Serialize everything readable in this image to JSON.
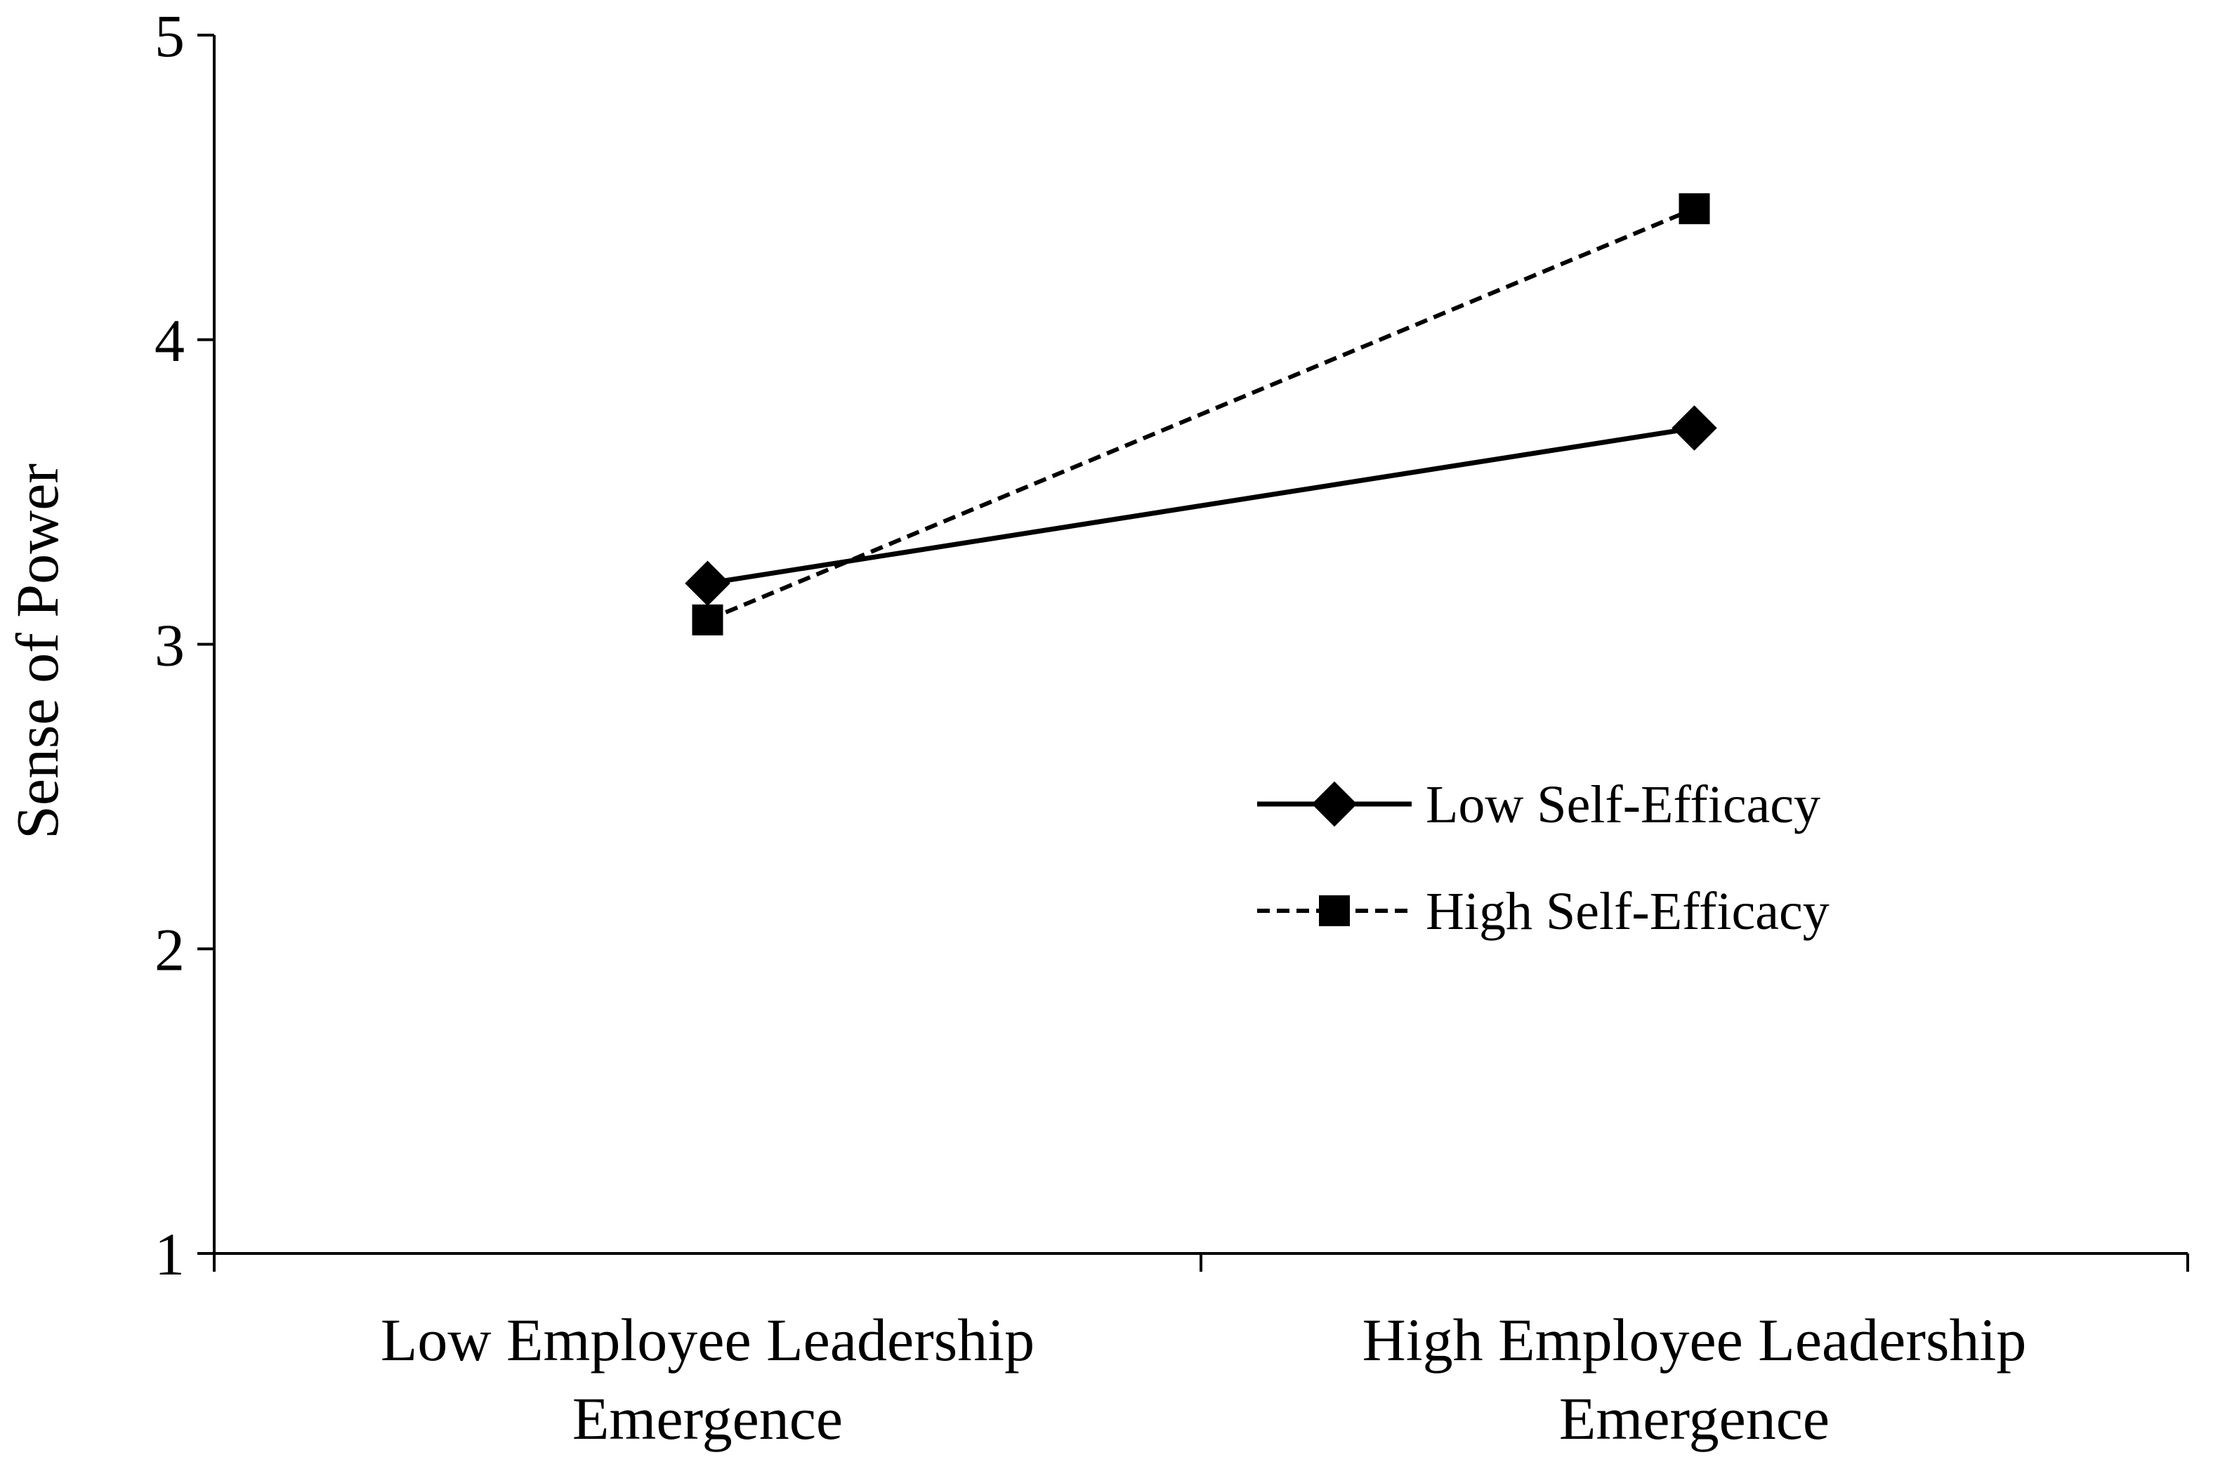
{
  "chart_data": {
    "type": "line",
    "title": "",
    "xlabel": "",
    "ylabel": "Sense of Power",
    "ylim": [
      1,
      5
    ],
    "yticks": [
      "1",
      "2",
      "3",
      "4",
      "5"
    ],
    "categories": [
      [
        "Low Employee Leadership",
        "Emergence"
      ],
      [
        "High Employee Leadership",
        "Emergence"
      ]
    ],
    "grid": false,
    "legend_position": "right-center",
    "series": [
      {
        "name": "Low Self-Efficacy",
        "values": [
          3.2,
          3.71
        ],
        "line_style": "solid",
        "marker": "diamond",
        "color": "#000000"
      },
      {
        "name": "High Self-Efficacy",
        "values": [
          3.08,
          4.43
        ],
        "line_style": "dashed",
        "marker": "square",
        "color": "#000000"
      }
    ]
  }
}
